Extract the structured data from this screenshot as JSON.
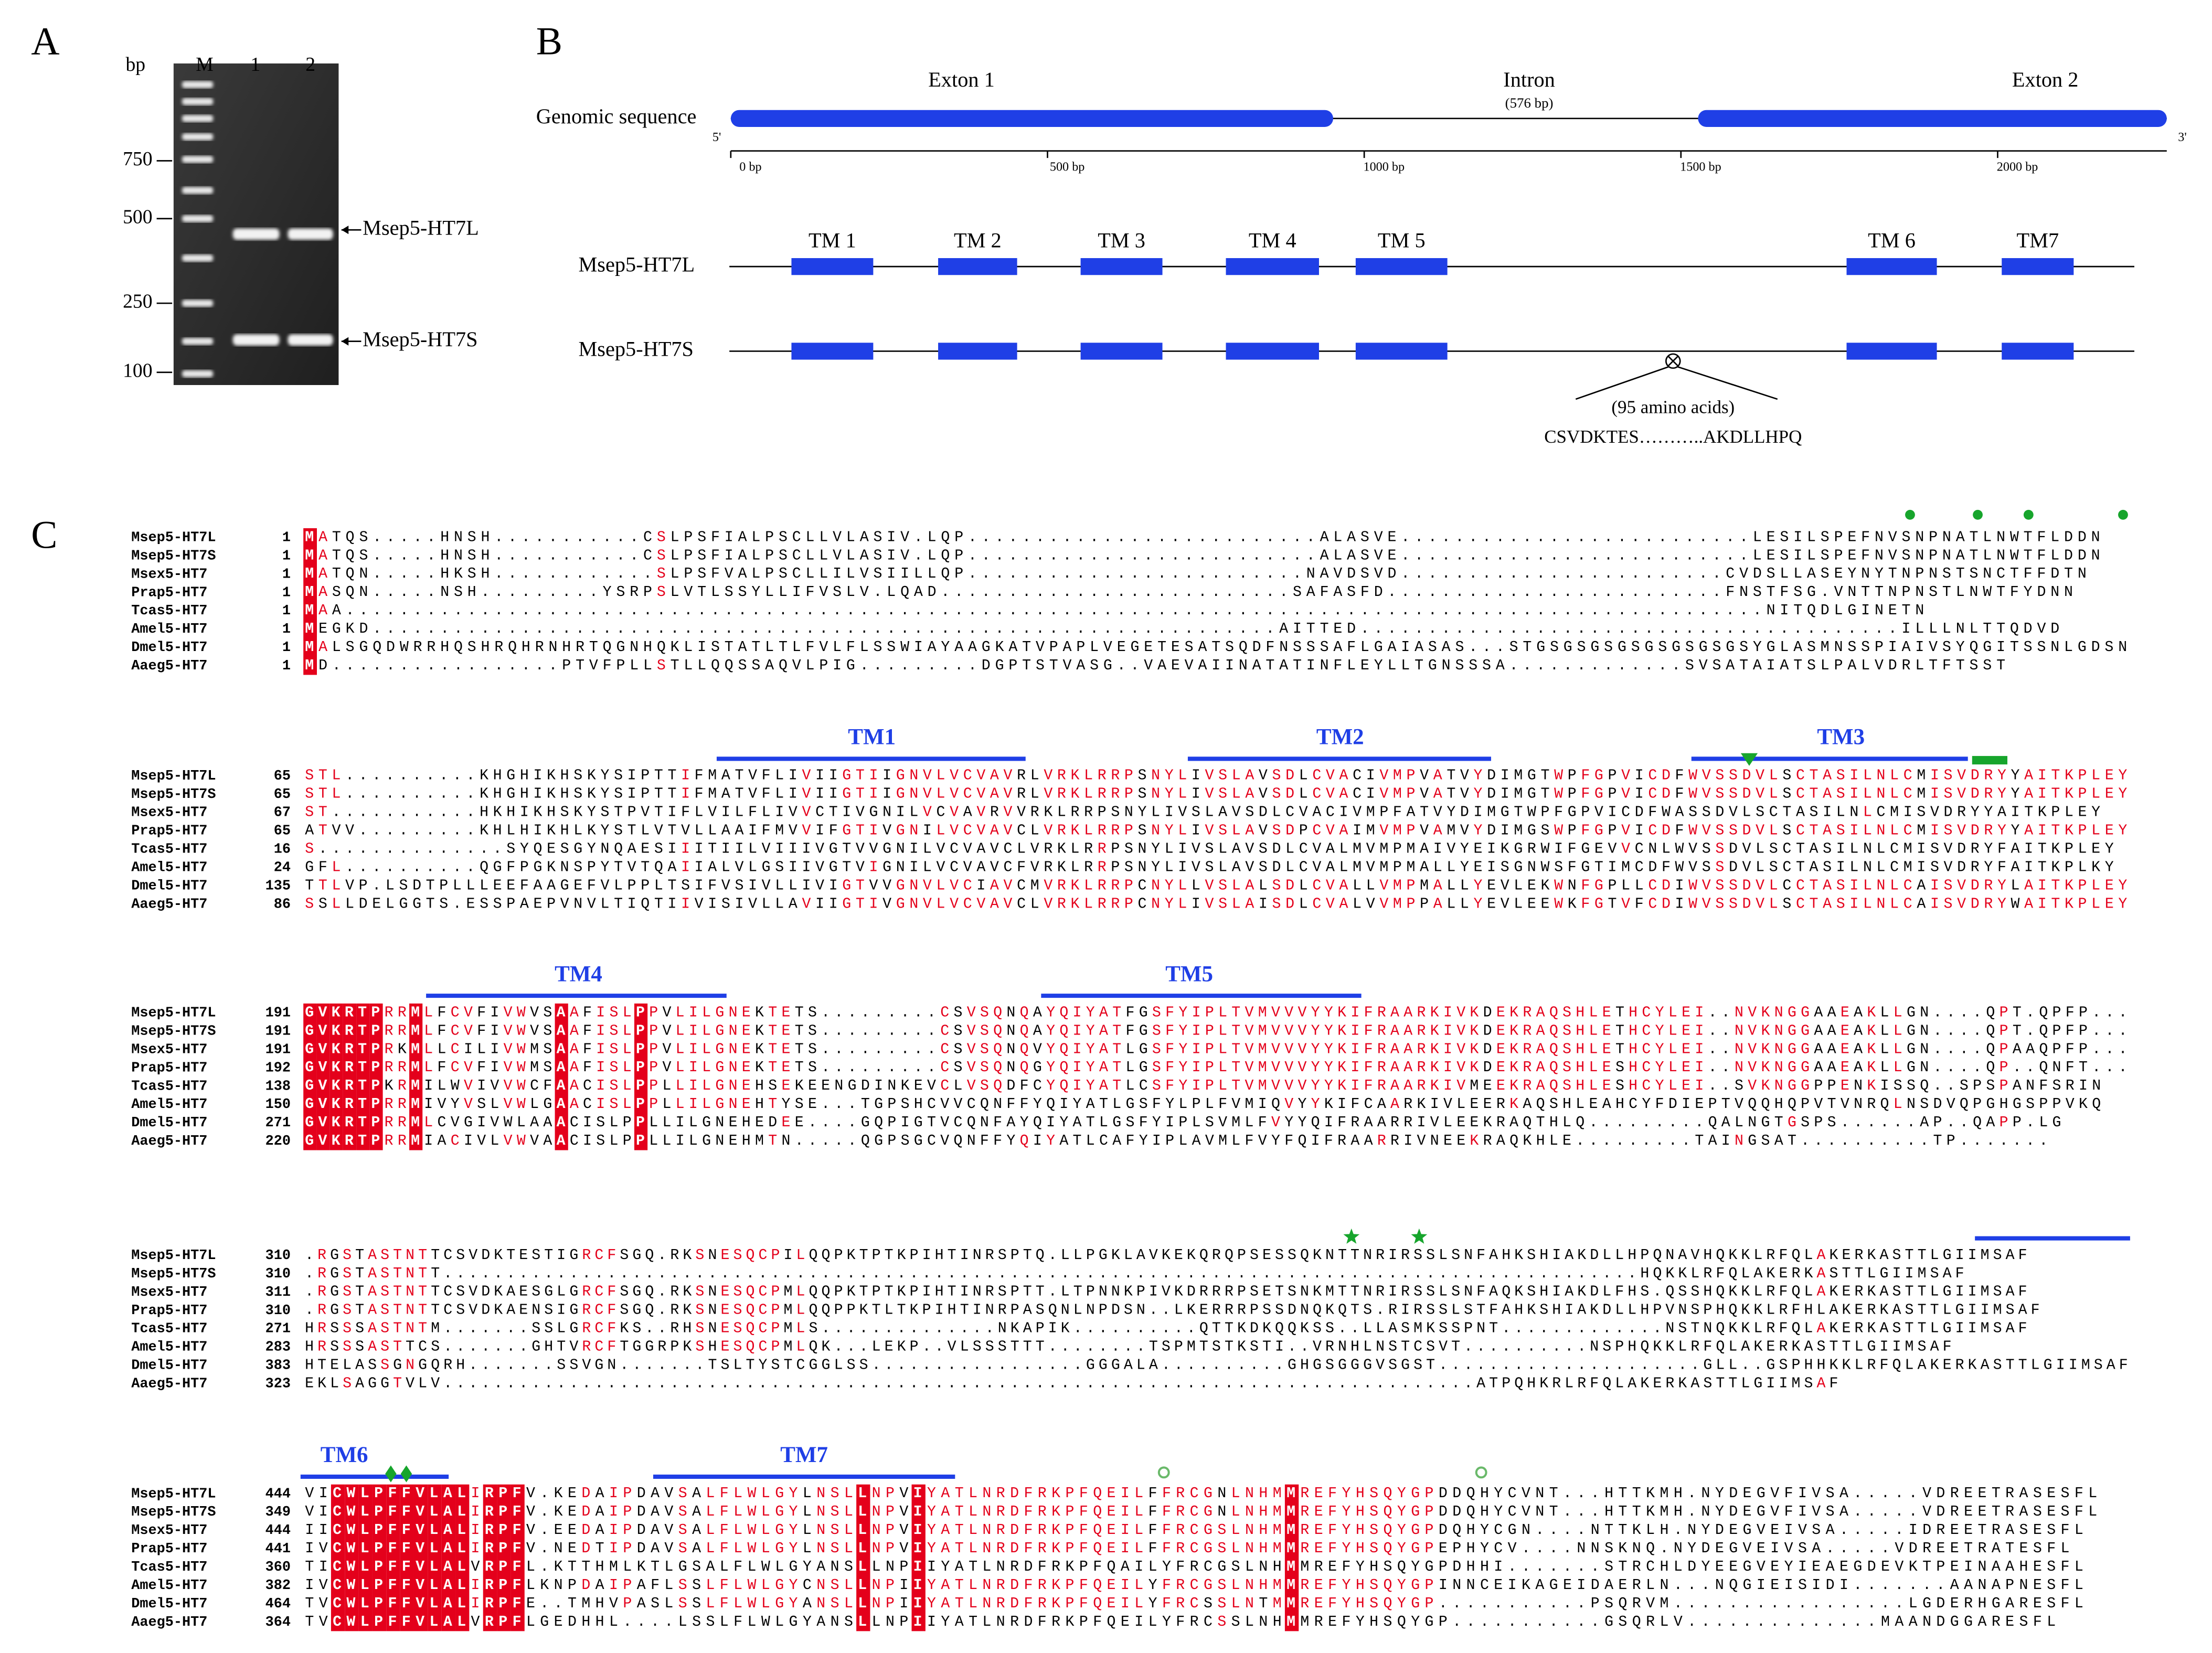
{
  "panel_a": {
    "label": "A",
    "unit": "bp",
    "lanes": [
      "M",
      "1",
      "2"
    ],
    "ladder": [
      750,
      500,
      250,
      100
    ],
    "bands": [
      "Msep5-HT7L",
      "Msep5-HT7S"
    ]
  },
  "panel_b": {
    "label": "B",
    "genomic": {
      "label": "Genomic sequence",
      "five": "5'",
      "three": "3'",
      "xlim": [
        0,
        2267
      ],
      "xticks": [
        {
          "value": 0,
          "label": "0 bp"
        },
        {
          "value": 500,
          "label": "500 bp"
        },
        {
          "value": 1000,
          "label": "1000 bp"
        },
        {
          "value": 1500,
          "label": "1500 bp"
        },
        {
          "value": 2000,
          "label": "2000 bp"
        }
      ],
      "exons": [
        {
          "label": "Exton 1",
          "start": 0,
          "end": 951
        },
        {
          "label": "Exton 2",
          "start": 1527,
          "end": 2267
        }
      ],
      "intron": {
        "label": "Intron",
        "size": "(576 bp)"
      }
    },
    "transcripts": {
      "tm_labels": [
        "TM 1",
        "TM 2",
        "TM 3",
        "TM 4",
        "TM 5",
        "TM 6",
        "TM7"
      ],
      "rows": [
        "Msep5-HT7L",
        "Msep5-HT7S"
      ],
      "deletion": "(95 amino acids)",
      "deleted_sequence": "CSVDKTES………..AKDLLHPQ"
    }
  },
  "panel_c": {
    "label": "C",
    "names": [
      "Msep5-HT7L",
      "Msep5-HT7S",
      "Msex5-HT7",
      "Prap5-HT7",
      "Tcas5-HT7",
      "Amel5-HT7",
      "Dmel5-HT7",
      "Aaeg5-HT7"
    ],
    "blocks": [
      {
        "tm": [],
        "starts": [
          1,
          1,
          1,
          1,
          1,
          1,
          1,
          1
        ],
        "seqs": [
          "MATQS.....HNSH...........CSLPSFIALPSCLLVLASIV.LQP..........................ALASVE..........................LESILSPEFNVSNPNATLNWTFLDDN",
          "MATQS.....HNSH...........CSLPSFIALPSCLLVLASIV.LQP..........................ALASVE..........................LESILSPEFNVSNPNATLNWTFLDDN",
          "MATQN.....HKSH............SLPSFVALPSCLLILVSIILLQP.........................NAVDSVD........................CVDSLLASEYNYTNPNSTSNCTFFDTN",
          "MASQN.....NSH.........YSRPSLVTLSSYLLIFVSLV.LQAD..........................SAFASFD.........................FNSTFSG.VNTTNPNSTLNWTFYDNN",
          "MAA.........................................................................................................NITQDLGINETN",
          "MEGKD...................................................................AITTED........................................ILLLNLTTQDVD",
          "MALSGQDWRRHQSHRQHRNHRTQGNHQKLISTATLTLFVLFLSSWIAYAAGKATVPAPLVEGETESATSQDFNSSSAFLGAIASAS...STGSGSGSGSGSGSGSGSYGLASMNSSPIAIVSYQGITSSNLGDSN",
          "MD.................PTVFPLLSTLLQQSSAQVLPIG.........DGPTSTVASG..VAEVAIINATATINFLEYLLTGNSSSA.............SVSATAIATSLPALVDRLTFTSST"
        ]
      },
      {
        "tm": [
          "TM1",
          "TM2",
          "TM3"
        ],
        "starts": [
          65,
          65,
          67,
          65,
          16,
          24,
          135,
          86
        ],
        "seqs": [
          "STL..........KHGHIKHSKYSIPTTIFMATVFLIVIIGTIIGNVLVCVAVRLVRKLRRPSNYLIVSLAVSDLCVACIVMPVATVYDIMGTWPFGPVICDFWVSSDVLSCTASILNLCMISVDRYYAITKPLEY",
          "STL..........KHGHIKHSKYSIPTTIFMATVFLIVIIGTIIGNVLVCVAVRLVRKLRRPSNYLIVSLAVSDLCVACIVMPVATVYDIMGTWPFGPVICDFWVSSDVLSCTASILNLCMISVDRYYAITKPLEY",
          "ST...........HKHIKHSKYSTPVTIFLVILFLIVVCTIVGNILVCVAVRVVRKLRRPSNYLIVSLAVSDLCVACIVMPFATVYDIMGTWPFGPVICDFWASSDVLSCTASILNLCMISVDRYYAITKPLEY",
          "ATVV.........KHLHIKHLKYSTLVTVLLAAIFMVVIFGTIVGNILVCVAVCLVRKLRRPSNYLIVSLAVSDPCVAIMVMPVAMVYDIMGSWPFGPVICDFWVSSDVLSCTASILNLCMISVDRYYAITKPLEY",
          "S..............SYQESGYNQAESIIITIILVIIIVGTVVGNILVCVAVCLVRKLRRPSNYLIVSLAVSDLCVALMVMPMAIVYEIKGRWIFGEVVCNLWVSSDVLSCTASILNLCMISVDRYFAITKPLEY",
          "GFL..........QGFPGKNSPYTVTQAIIALVLGSIIVGTVIGNILVCVAVCFVRKLRRPSNYLIVSLAVSDLCVALMVMPMALLYEISGNWSFGTIMCDFWVSSDVLSCTASILNLCMISVDRYFAITKPLKY",
          "TTLVP.LSDTPLLLEEFAAGEFVLPPLTSIFVSIVLLIVIGTVVGNVLVCIAVCMVRKLRRPCNYLLVSLALSDLCVALLVMPMALLYEVLEKWNFGPLLCDIWVSSDVLCCTASILNLCAISVDRYLAITKPLEY",
          "SSLLDELGGTS.ESSPAEPVNVLTIQTIIVISIVLLAVIIGTIVGNVLVCVAVCLVRKLRRPCNYLIVSLAISDLCVALVVMPPALLYEVLEEWKFGTVFCDIWVSSDVLSCTASILNLCAISVDRYWAITKPLEY"
        ]
      },
      {
        "tm": [
          "TM4",
          "TM5"
        ],
        "starts": [
          191,
          191,
          191,
          192,
          138,
          150,
          271,
          220
        ],
        "seqs": [
          "GVKRTPRRMLFCVFIVWVSAAFISLPPVLILGNEKTETS.........CSVSQNQAYQIYATFGSFYIPLTVMVVVYYKIFRAARKIVKDEKRAQSHLETHCYLEI..NVKNGGAAEAKLLGN....QPT.QPFP...",
          "GVKRTPRRMLFCVFIVWVSAAFISLPPVLILGNEKTETS.........CSVSQNQAYQIYATFGSFYIPLTVMVVVYYKIFRAARKIVKDEKRAQSHLETHCYLEI..NVKNGGAAEAKLLGN....QPT.QPFP...",
          "GVKRTPRKMLLCILIVWMSAAFISLPPVLILGNEKTETS.........CSVSQNQVYQIYATLGSFYIPLTVMVVVYYKIFRAARKIVKDEKRAQSHLETHCYLEI..NVKNGGAAEAKLLGN....QPAAQPFP...",
          "GVKRTPRRMLFCVFIVWMSAAFISLPPVLILGNEKTETS.........CSVSQNQGYQIYATLGSFYIPLTVMVVVYYKIFRAARKIVKDEKRAQSHLESHCYLEI..NVKNGGAAEAKLLGN....QP..QNFT...",
          "GVKRTPKRMILWVIVVWCFAACISLPPLLILGNEHSEKEENGDINKEVCLVSQDFCYQIYATLCSFYIPLTVMVVVYYKIFRAARKIVMEEKRAQSHLESHCYLEI..SVKNGGPPENKISSQ..SPSPANFSRIN",
          "GVKRTPRRMIVYVSLVWLGAACISLPPLLILGNEHTYSE...TGPSHCVVCQNFFYQIYATLGSFYLPLFVMIQVYYKIFCAARKIVLEERKAQSHLEAHCYFDIEPTVQQHQPVTVNRQLNSDVQPGHGSPPVKQ",
          "GVKRTPRRMLCVGIVWLAAACISLPPLLILGNEHEDEE....GQPIGTVCQNFAYQIYATLGSFYIPLSVMLFVYYQIFRAARRIVLEEKRAQTHLQ.........QALNGTGSPS......AP..QAPP.LG",
          "GVKRTPRRMIACIVLVWVAACISLPPLLILGNEHMTN.....QGPSGCVQNFFYQIYATLCAFYIPLAVMLFVYFQIFRAARRIVNEEKRAQKHLE.........TAINGSAT..........TP......."
        ]
      },
      {
        "tm": [],
        "starts": [
          310,
          310,
          311,
          310,
          271,
          283,
          383,
          323
        ],
        "seqs": [
          ".RGSTASTNTTCSVDKTESTIGRCFSGQ.RKSNESQCPILQQPKTPTKPIHTINRSPTQ.LLPGKLAVKEKQRQPSESSQKNTTNRIRSSLSNFAHKSHIAKDLLHPQNAVHQKKLRFQLAKERKASTTLGIIMSAF",
          ".RGSTASTNTT...............................................................................................HQKKLRFQLAKERKASTTLGIIMSAF",
          ".RGSTASTNTTCSVDKAESGLGRCFSGQ.RKSNESQCPMLQQPKTPTKPIHTINRSPTT.LTPNNKPIVKDRRRPSETSNKMTTNRIRSSLSNFAQKSHIAKDLFHS.QSSHQKKLRFQLAKERKASTTLGIIMSAF",
          ".RGSTASTNTTCSVDKAENSIGRCFSGQ.RKSNESQCPMLQQPPKTLTKPIHTINRPASQNLNPDSN..LKERRRPSSDNQKQTS.RIRSSLSTFAHKSHIAKDLLHPVNSPHQKKLRFHLAKERKASTTLGIIMSAF",
          "HRSSSASTNTM.......SSLGRCFKS..RHSNESQCPMLS..............NKAPIK..........QTTKDKQQKSS..LLASMKSSPNT.............NSTNQKKLRFQLAKERKASTTLGIIMSAF",
          "HRSSSASTTCS.......GHTVRCFTGGRPKSHESQCPMLQK...LEKP..VLSSSTTT........TSPMTSTKSTI..VRNHLNSTCSVT..........NSPHQKKLRFQLAKERKASTTLGIIMSAF",
          "HTELASSGNGQRH.......SSVGN.......TSLTYSTCGGLSS.................GGGALA..........GHGSGGGVSGST.....................GLL..GSPHHKKLRFQLAKERKASTTLGIIMSAF",
          "EKLSAGGTVLV..................................................................................ATPQHKRLRFQLAKERKASTTLGIIMSAF"
        ]
      },
      {
        "tm": [
          "TM6",
          "TM7"
        ],
        "starts": [
          444,
          349,
          444,
          441,
          360,
          382,
          464,
          364
        ],
        "seqs": [
          "VICWLPFFVLALIRPFV.KEDAIPDAVSALFLWLGYLNSLLNPVIYATLNRDFRKPFQEILFFRCGNLNHMMREFYHSQYGPDDQHYCVNT...HTTKMH.NYDEGVFIVSA.....VDREETRASESFL",
          "VICWLPFFVLALIRPFV.KEDAIPDAVSALFLWLGYLNSLLNPVIYATLNRDFRKPFQEILFFRCGNLNHMMREFYHSQYGPDDQHYCVNT...HTTKMH.NYDEGVFIVSA.....VDREETRASESFL",
          "IICWLPFFVLALIRPFV.EEDAIPDAVSALFLWLGYLNSLLNPVIYATLNRDFRKPFQEILFFRCGSLNHMMREFYHSQYGPDQHYCGN....NTTKLH.NYDEGVEIVSA.....IDREETRASESFL",
          "IVCWLPFFVLALIRPFV.NEDTIPDAVSALFLWLGYLNSLLNPVIYATLNRDFRKPFQEILFFRCGSLNHMMREFYHSQYGPEPHYCV....NNSKNQ.NYDEGVEIVSA.....VDREETRATESFL",
          "TICWLPFFVLALVRPFL.KTTHMLKTLGSALFLWLGYANSLLNPIIYATLNRDFRKPFQAILYFRCGSLNHMMREFYHSQYGPDHHI.......STRCHLDYEEGVEYIEAEGDEVKTPEINAAHESFL",
          "IVCWLPFFVLALIRPFLKNPDAIPAFLSSLFLWLGYCNSLLNPIIYATLNRDFRKPFQEILYFRCGSLNHMMREFYHSQYGPINNCEIKAGEIDAERLN...NQGIEISIDI.......AANAPNESFL",
          "TVCWLPFFVLALIRPFE..TMHVPASLSSLFLWLGYANSLLNPIIYATLNRDFRKPFQEILYFRCSSLNTMMREFYHSQYGP...........PSQRVM.................LGDERHGARESFL",
          "TVCWLPFFVLALVRPFLGEDHHL....LSSLFLWLGYANSLLNPIIYATLNRDFRKPFQEILYFRCSSLNHMMREFYHSQYGP...........GSQRLV..............MAANDGGARESFL"
        ]
      }
    ]
  }
}
